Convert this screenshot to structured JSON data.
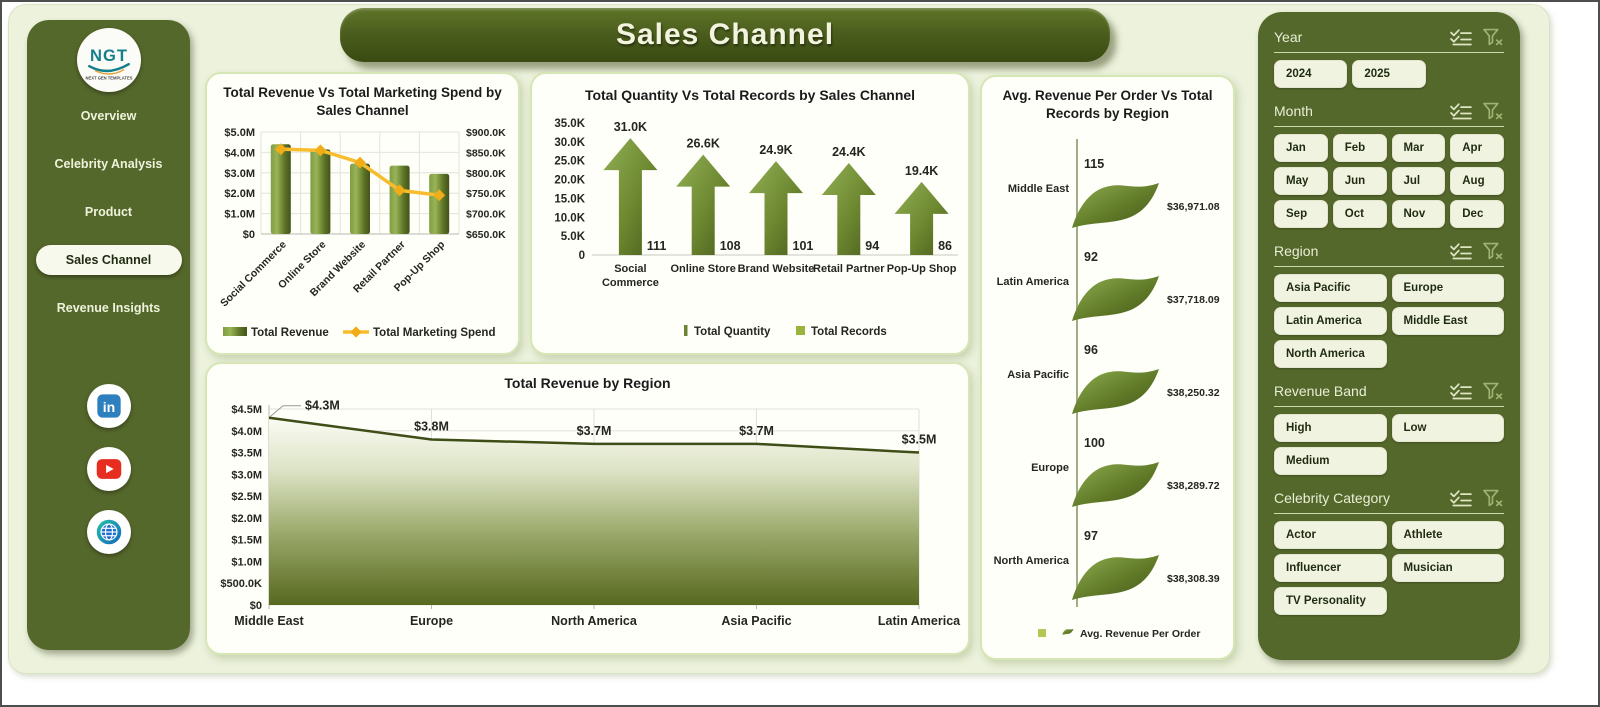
{
  "app": {
    "title": "Sales Channel"
  },
  "sidebar": {
    "logo": {
      "text": "NGT",
      "tagline": "NEXT GEN TEMPLATES"
    },
    "items": [
      {
        "label": "Overview",
        "active": false
      },
      {
        "label": "Celebrity Analysis",
        "active": false
      },
      {
        "label": "Product",
        "active": false
      },
      {
        "label": "Sales Channel",
        "active": true
      },
      {
        "label": "Revenue Insights",
        "active": false
      }
    ],
    "social": [
      "linkedin",
      "youtube",
      "globe"
    ]
  },
  "slicers": [
    {
      "title": "Year",
      "columns": 3,
      "items": [
        "2024",
        "2025"
      ]
    },
    {
      "title": "Month",
      "columns": 4,
      "items": [
        "Jan",
        "Feb",
        "Mar",
        "Apr",
        "May",
        "Jun",
        "Jul",
        "Aug",
        "Sep",
        "Oct",
        "Nov",
        "Dec"
      ]
    },
    {
      "title": "Region",
      "columns": 2,
      "items": [
        "Asia Pacific",
        "Europe",
        "Latin America",
        "Middle East",
        "North America"
      ]
    },
    {
      "title": "Revenue Band",
      "columns": 2,
      "items": [
        "High",
        "Low",
        "Medium"
      ]
    },
    {
      "title": "Celebrity Category",
      "columns": 2,
      "items": [
        "Actor",
        "Athlete",
        "Influencer",
        "Musician",
        "TV Personality"
      ]
    }
  ],
  "slicer_icons": {
    "multiselect": "multiselect-icon",
    "clear_filter": "clear-filter-icon"
  },
  "colors": {
    "dark_green": "#55682b",
    "banner_green": "#46581a",
    "bar_green_light": "#9ab457",
    "bar_green_dark": "#42531a",
    "marketing_line_yellow": "#f7bd2e",
    "records_swatch_green": "#9ab33f",
    "canvas_bg": "#ecf2dc",
    "card_bg": "#fdfff8",
    "slicer_button_bg": "#f1f3e1"
  },
  "chart_data": [
    {
      "id": "revenue_vs_marketing",
      "type": "bar",
      "title": "Total Revenue Vs Total Marketing Spend by Sales Channel",
      "categories": [
        "Social Commerce",
        "Online Store",
        "Brand Website",
        "Retail Partner",
        "Pop-Up Shop"
      ],
      "series": [
        {
          "name": "Total Revenue",
          "type": "bar",
          "axis": "left",
          "values": [
            4400000,
            4150000,
            3450000,
            3350000,
            2950000
          ]
        },
        {
          "name": "Total Marketing Spend",
          "type": "line",
          "axis": "right",
          "values": [
            858000,
            855000,
            825000,
            757000,
            745000
          ]
        }
      ],
      "left_axis": {
        "ticks": [
          "$5.0M",
          "$4.0M",
          "$3.0M",
          "$2.0M",
          "$1.0M",
          "$0"
        ],
        "min": 0,
        "max": 5000000
      },
      "right_axis": {
        "ticks": [
          "$900.0K",
          "$850.0K",
          "$800.0K",
          "$750.0K",
          "$700.0K",
          "$650.0K"
        ],
        "min": 650000,
        "max": 900000
      },
      "legend_position": "bottom",
      "grid": true
    },
    {
      "id": "quantity_vs_records",
      "type": "bar",
      "title": "Total Quantity Vs Total Records by Sales Channel",
      "categories": [
        "Social Commerce",
        "Online Store",
        "Brand Website",
        "Retail Partner",
        "Pop-Up Shop"
      ],
      "series": [
        {
          "name": "Total Quantity",
          "values": [
            31000,
            26600,
            24900,
            24400,
            19400
          ],
          "labels": [
            "31.0K",
            "26.6K",
            "24.9K",
            "24.4K",
            "19.4K"
          ]
        },
        {
          "name": "Total Records",
          "values": [
            111,
            108,
            101,
            94,
            86
          ],
          "labels": [
            "111",
            "108",
            "101",
            "94",
            "86"
          ]
        }
      ],
      "y_axis": {
        "ticks": [
          "35.0K",
          "30.0K",
          "25.0K",
          "20.0K",
          "15.0K",
          "10.0K",
          "5.0K",
          "0"
        ],
        "min": 0,
        "max": 35000
      },
      "legend_position": "bottom",
      "grid": false
    },
    {
      "id": "avg_revenue_per_order_by_region",
      "type": "bar",
      "title": "Avg. Revenue Per Order Vs Total Records by Region",
      "categories": [
        "Middle East",
        "Latin America",
        "Asia Pacific",
        "Europe",
        "North America"
      ],
      "series": [
        {
          "name": "Total Records",
          "values": [
            115,
            92,
            96,
            100,
            97
          ],
          "labels": [
            "115",
            "92",
            "96",
            "100",
            "97"
          ]
        },
        {
          "name": "Avg. Revenue Per Order",
          "values": [
            36971.08,
            37718.09,
            38250.32,
            38289.72,
            38308.39
          ],
          "labels": [
            "$36,971.08",
            "$37,718.09",
            "$38,250.32",
            "$38,289.72",
            "$38,308.39"
          ]
        }
      ],
      "legend": "Avg. Revenue Per Order",
      "legend_position": "bottom"
    },
    {
      "id": "total_revenue_by_region",
      "type": "area",
      "title": "Total Revenue by Region",
      "categories": [
        "Middle East",
        "Europe",
        "North America",
        "Asia Pacific",
        "Latin America"
      ],
      "values": [
        4300000,
        3800000,
        3700000,
        3700000,
        3500000
      ],
      "labels": [
        "$4.3M",
        "$3.8M",
        "$3.7M",
        "$3.7M",
        "$3.5M"
      ],
      "y_axis": {
        "ticks": [
          "$4.5M",
          "$4.0M",
          "$3.5M",
          "$3.0M",
          "$2.5M",
          "$2.0M",
          "$1.5M",
          "$1.0M",
          "$500.0K",
          "$0"
        ],
        "min": 0,
        "max": 4500000
      },
      "grid": true
    }
  ]
}
